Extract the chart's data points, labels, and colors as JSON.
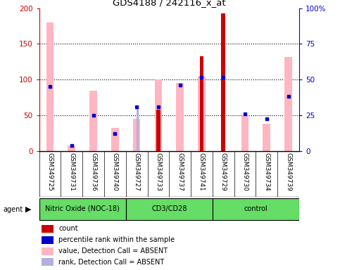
{
  "title": "GDS4188 / 242116_x_at",
  "samples": [
    "GSM349725",
    "GSM349731",
    "GSM349736",
    "GSM349740",
    "GSM349727",
    "GSM349733",
    "GSM349737",
    "GSM349741",
    "GSM349729",
    "GSM349730",
    "GSM349734",
    "GSM349739"
  ],
  "pink_bars": [
    180,
    8,
    85,
    32,
    45,
    100,
    95,
    105,
    0,
    50,
    38,
    132
  ],
  "red_bars": [
    0,
    0,
    0,
    0,
    0,
    58,
    0,
    133,
    193,
    0,
    0,
    0
  ],
  "blue_sq_left": [
    90,
    8,
    50,
    25,
    62,
    62,
    92,
    103,
    103,
    52,
    45,
    77
  ],
  "lavender_bars": [
    0,
    0,
    0,
    0,
    62,
    0,
    0,
    0,
    0,
    0,
    0,
    0
  ],
  "ylim_left": [
    0,
    200
  ],
  "ylim_right": [
    0,
    100
  ],
  "yticks_left": [
    0,
    50,
    100,
    150,
    200
  ],
  "yticks_right": [
    0,
    25,
    50,
    75,
    100
  ],
  "ytick_labels_right": [
    "0",
    "25",
    "50",
    "75",
    "100%"
  ],
  "ytick_labels_left": [
    "0",
    "50",
    "100",
    "150",
    "200"
  ],
  "bg_color": "#ffffff",
  "left_color": "#cc0000",
  "right_color": "#0000cc",
  "pink_color": "#FFB6C1",
  "red_color": "#cc0000",
  "blue_color": "#0000cc",
  "lavender_color": "#b0b0e0",
  "gray_bg": "#d3d3d3",
  "green_color": "#66dd66",
  "groups": [
    {
      "label": "Nitric Oxide (NOC-18)",
      "start": 0,
      "end": 3
    },
    {
      "label": "CD3/CD28",
      "start": 4,
      "end": 7
    },
    {
      "label": "control",
      "start": 8,
      "end": 11
    }
  ],
  "legend_labels": [
    "count",
    "percentile rank within the sample",
    "value, Detection Call = ABSENT",
    "rank, Detection Call = ABSENT"
  ],
  "legend_colors": [
    "#cc0000",
    "#0000cc",
    "#FFB6C1",
    "#b0b0e0"
  ]
}
